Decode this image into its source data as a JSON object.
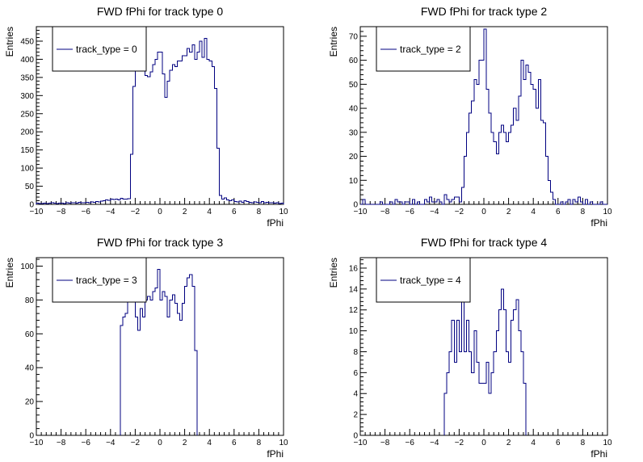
{
  "chart_data": [
    {
      "type": "histogram",
      "title": "FWD fPhi for track type 0",
      "xlabel": "fPhi",
      "ylabel": "Entries",
      "xlim": [
        -10,
        10
      ],
      "ylim": [
        0,
        490
      ],
      "x_ticks": [
        -10,
        -8,
        -6,
        -4,
        -2,
        0,
        2,
        4,
        6,
        8,
        10
      ],
      "y_ticks": [
        0,
        50,
        100,
        150,
        200,
        250,
        300,
        350,
        400,
        450
      ],
      "bin_width": 0.2,
      "series": [
        {
          "name": "track_type = 0",
          "bins_from": -10,
          "values": [
            3,
            2,
            2,
            3,
            2,
            3,
            4,
            3,
            2,
            3,
            3,
            2,
            4,
            3,
            5,
            4,
            3,
            6,
            5,
            4,
            6,
            5,
            7,
            6,
            8,
            7,
            9,
            10,
            12,
            11,
            14,
            13,
            15,
            12,
            17,
            15,
            14,
            16,
            138,
            325,
            380,
            395,
            430,
            400,
            355,
            352,
            365,
            385,
            400,
            420,
            420,
            360,
            295,
            340,
            370,
            385,
            380,
            395,
            395,
            410,
            410,
            430,
            420,
            440,
            400,
            420,
            450,
            405,
            458,
            400,
            395,
            380,
            320,
            155,
            25,
            15,
            18,
            12,
            10,
            12,
            8,
            7,
            9,
            6,
            10,
            8,
            6,
            5,
            7,
            6,
            5,
            8,
            5,
            6,
            4,
            5,
            3,
            4,
            2,
            3
          ]
        }
      ],
      "legend": {
        "position": "top-left",
        "label": "track_type = 0"
      }
    },
    {
      "type": "histogram",
      "title": "FWD fPhi for track type 2",
      "xlabel": "fPhi",
      "ylabel": "Entries",
      "xlim": [
        -10,
        10
      ],
      "ylim": [
        0,
        74
      ],
      "x_ticks": [
        -10,
        -8,
        -6,
        -4,
        -2,
        0,
        2,
        4,
        6,
        8,
        10
      ],
      "y_ticks": [
        0,
        10,
        20,
        30,
        40,
        50,
        60,
        70
      ],
      "bin_width": 0.2,
      "series": [
        {
          "name": "track_type = 2",
          "bins_from": -10,
          "values": [
            0,
            2,
            0,
            0,
            0,
            0,
            0,
            0,
            1,
            0,
            0,
            0,
            1,
            0,
            2,
            1,
            1,
            0,
            1,
            1,
            0,
            2,
            0,
            1,
            0,
            0,
            2,
            1,
            3,
            1,
            1,
            2,
            1,
            0,
            4,
            2,
            1,
            2,
            3,
            3,
            1,
            7,
            20,
            30,
            38,
            43,
            52,
            50,
            60,
            60,
            73,
            48,
            38,
            30,
            26,
            21,
            30,
            33,
            30,
            26,
            30,
            33,
            40,
            35,
            45,
            60,
            52,
            58,
            55,
            50,
            48,
            40,
            52,
            35,
            34,
            20,
            10,
            5,
            2,
            0,
            0,
            1,
            0,
            1,
            2,
            0,
            2,
            1,
            3,
            1,
            0,
            2,
            0,
            1,
            0,
            0,
            0,
            1,
            0,
            0
          ]
        }
      ],
      "legend": {
        "position": "top-left",
        "label": "track_type = 2"
      }
    },
    {
      "type": "histogram",
      "title": "FWD fPhi for track type 3",
      "xlabel": "fPhi",
      "ylabel": "Entries",
      "xlim": [
        -10,
        10
      ],
      "ylim": [
        0,
        105
      ],
      "x_ticks": [
        -10,
        -8,
        -6,
        -4,
        -2,
        0,
        2,
        4,
        6,
        8,
        10
      ],
      "y_ticks": [
        0,
        20,
        40,
        60,
        80,
        100
      ],
      "bin_width": 0.2,
      "series": [
        {
          "name": "track_type = 3",
          "bins_from": -3.2,
          "values": [
            65,
            70,
            72,
            85,
            80,
            82,
            70,
            62,
            75,
            70,
            80,
            82,
            80,
            85,
            87,
            98,
            80,
            85,
            82,
            70,
            80,
            83,
            78,
            72,
            68,
            78,
            88,
            93,
            95,
            88,
            50
          ]
        }
      ],
      "legend": {
        "position": "top-left",
        "label": "track_type = 3"
      }
    },
    {
      "type": "histogram",
      "title": "FWD fPhi for track type 4",
      "xlabel": "fPhi",
      "ylabel": "Entries",
      "xlim": [
        -10,
        10
      ],
      "ylim": [
        0,
        17
      ],
      "x_ticks": [
        -10,
        -8,
        -6,
        -4,
        -2,
        0,
        2,
        4,
        6,
        8,
        10
      ],
      "y_ticks": [
        0,
        2,
        4,
        6,
        8,
        10,
        12,
        14,
        16
      ],
      "bin_width": 0.2,
      "series": [
        {
          "name": "track_type = 4",
          "bins_from": -3.2,
          "values": [
            4,
            6,
            8,
            11,
            7,
            11,
            8,
            13,
            8,
            11,
            8,
            6,
            10,
            7,
            5,
            5,
            5,
            7,
            4,
            6,
            8,
            10,
            12,
            14,
            12,
            8,
            7,
            11,
            12,
            13,
            10,
            8,
            5
          ]
        }
      ],
      "legend": {
        "position": "top-left",
        "label": "track_type = 4"
      }
    }
  ],
  "colors": {
    "histogram_line": "#000080",
    "axis": "#000000",
    "background": "#ffffff"
  }
}
